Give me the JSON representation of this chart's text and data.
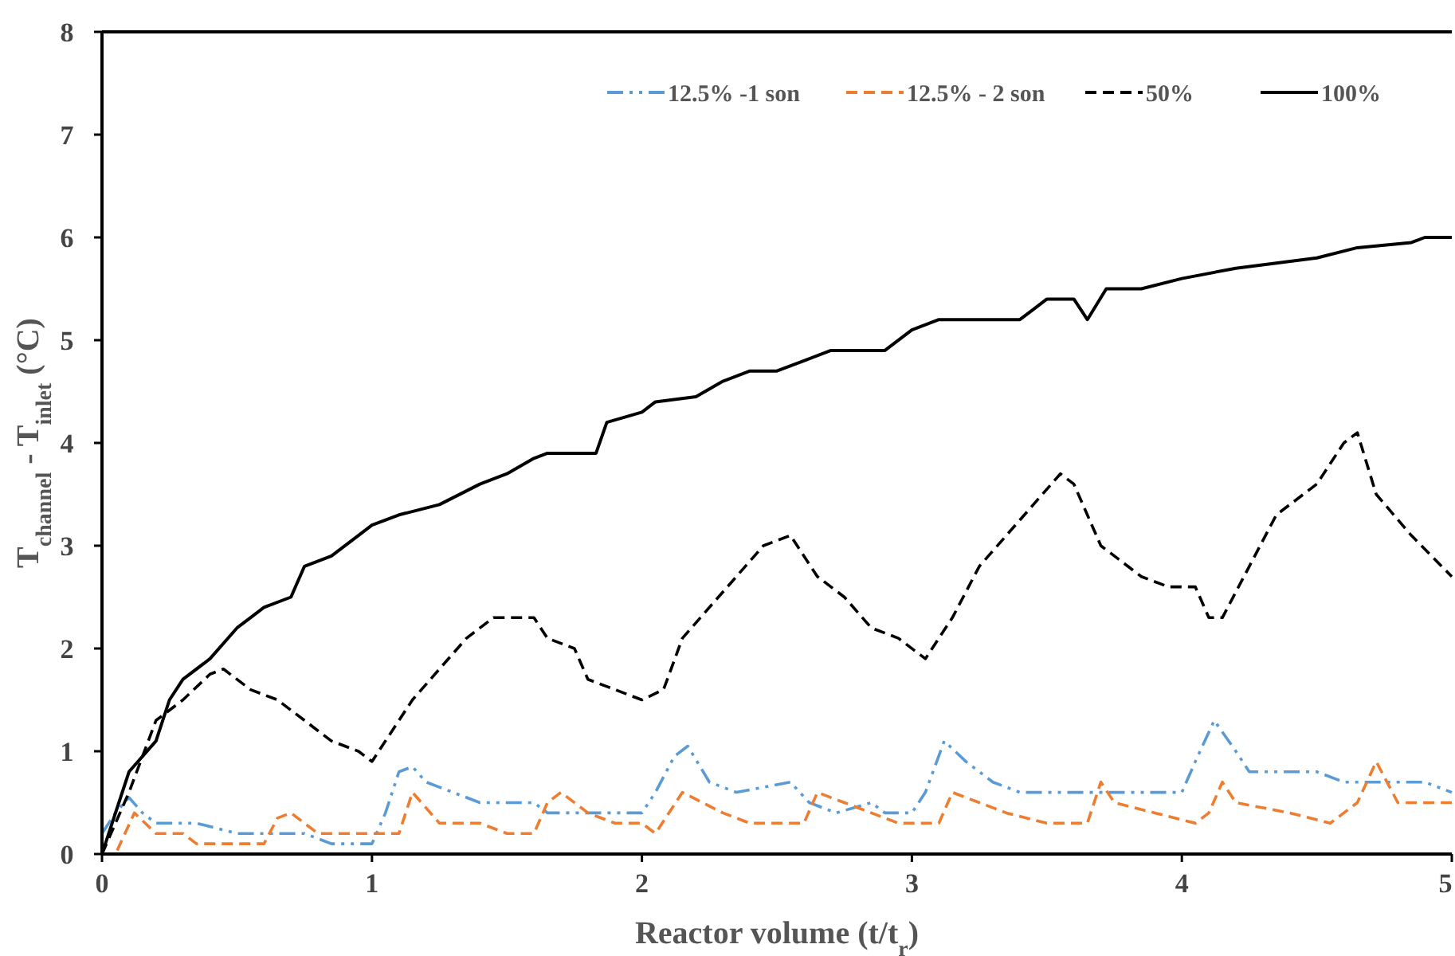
{
  "chart_data": {
    "type": "line",
    "xlabel": "Reactor volume (t/t$_{r}$)",
    "ylabel": "T$_{channel}$ - T$_{inlet}$ (°C)",
    "xlim": [
      0,
      5
    ],
    "ylim": [
      0,
      8
    ],
    "xticks": [
      0,
      1,
      2,
      3,
      4,
      5
    ],
    "yticks": [
      0,
      1,
      2,
      3,
      4,
      5,
      6,
      7,
      8
    ],
    "grid": false,
    "legend": "top right",
    "marker": "none",
    "series": [
      {
        "name": "12.5% -1 son",
        "color": "#5b9bd5",
        "line_style": "dotted",
        "x": [
          0,
          0.05,
          0.1,
          0.15,
          0.2,
          0.35,
          0.5,
          0.6,
          0.75,
          0.85,
          1.0,
          1.05,
          1.1,
          1.15,
          1.2,
          1.3,
          1.4,
          1.6,
          1.65,
          1.9,
          2.0,
          2.05,
          2.12,
          2.17,
          2.25,
          2.35,
          2.55,
          2.62,
          2.72,
          2.85,
          2.9,
          3.0,
          3.05,
          3.12,
          3.2,
          3.3,
          3.4,
          3.6,
          3.72,
          3.85,
          4.0,
          4.05,
          4.12,
          4.2,
          4.25,
          4.5,
          4.6,
          4.9,
          5.0
        ],
        "values": [
          0.2,
          0.4,
          0.55,
          0.4,
          0.3,
          0.3,
          0.2,
          0.2,
          0.2,
          0.1,
          0.1,
          0.4,
          0.8,
          0.85,
          0.7,
          0.6,
          0.5,
          0.5,
          0.4,
          0.4,
          0.4,
          0.6,
          0.95,
          1.05,
          0.7,
          0.6,
          0.7,
          0.5,
          0.4,
          0.5,
          0.4,
          0.4,
          0.6,
          1.1,
          0.9,
          0.7,
          0.6,
          0.6,
          0.6,
          0.6,
          0.6,
          0.9,
          1.3,
          1.0,
          0.8,
          0.8,
          0.7,
          0.7,
          0.6
        ]
      },
      {
        "name": "12.5% - 2 son",
        "color": "#ed7d31",
        "line_style": "dashed",
        "x": [
          0,
          0.05,
          0.12,
          0.2,
          0.3,
          0.35,
          0.6,
          0.65,
          0.7,
          0.75,
          0.8,
          1.0,
          1.1,
          1.15,
          1.25,
          1.4,
          1.5,
          1.6,
          1.65,
          1.7,
          1.8,
          1.9,
          2.0,
          2.05,
          2.15,
          2.3,
          2.4,
          2.6,
          2.65,
          2.75,
          2.85,
          2.95,
          3.1,
          3.15,
          3.25,
          3.35,
          3.5,
          3.65,
          3.7,
          3.75,
          3.9,
          4.05,
          4.1,
          4.15,
          4.2,
          4.4,
          4.55,
          4.65,
          4.72,
          4.8,
          5.0
        ],
        "values": [
          0,
          0,
          0.4,
          0.2,
          0.2,
          0.1,
          0.1,
          0.35,
          0.4,
          0.3,
          0.2,
          0.2,
          0.2,
          0.6,
          0.3,
          0.3,
          0.2,
          0.2,
          0.5,
          0.6,
          0.4,
          0.3,
          0.3,
          0.2,
          0.6,
          0.4,
          0.3,
          0.3,
          0.6,
          0.5,
          0.4,
          0.3,
          0.3,
          0.6,
          0.5,
          0.4,
          0.3,
          0.3,
          0.7,
          0.5,
          0.4,
          0.3,
          0.4,
          0.7,
          0.5,
          0.4,
          0.3,
          0.5,
          0.9,
          0.5,
          0.5
        ]
      },
      {
        "name": "50%",
        "color": "#000000",
        "line_style": "dashed",
        "x": [
          0,
          0.1,
          0.2,
          0.3,
          0.4,
          0.45,
          0.55,
          0.65,
          0.75,
          0.85,
          0.95,
          1.0,
          1.05,
          1.15,
          1.25,
          1.35,
          1.45,
          1.6,
          1.65,
          1.75,
          1.8,
          1.9,
          2.0,
          2.08,
          2.15,
          2.25,
          2.35,
          2.45,
          2.55,
          2.65,
          2.75,
          2.85,
          2.95,
          3.05,
          3.15,
          3.25,
          3.35,
          3.45,
          3.55,
          3.6,
          3.7,
          3.85,
          3.95,
          4.05,
          4.1,
          4.15,
          4.25,
          4.35,
          4.5,
          4.6,
          4.65,
          4.72,
          4.85,
          5.0
        ],
        "values": [
          0,
          0.6,
          1.3,
          1.5,
          1.75,
          1.8,
          1.6,
          1.5,
          1.3,
          1.1,
          1.0,
          0.9,
          1.1,
          1.5,
          1.8,
          2.1,
          2.3,
          2.3,
          2.1,
          2.0,
          1.7,
          1.6,
          1.5,
          1.6,
          2.1,
          2.4,
          2.7,
          3.0,
          3.1,
          2.7,
          2.5,
          2.2,
          2.1,
          1.9,
          2.3,
          2.8,
          3.1,
          3.4,
          3.7,
          3.6,
          3.0,
          2.7,
          2.6,
          2.6,
          2.3,
          2.3,
          2.8,
          3.3,
          3.6,
          4.0,
          4.1,
          3.5,
          3.1,
          2.7
        ]
      },
      {
        "name": "100%",
        "color": "#000000",
        "line_style": "solid",
        "x": [
          0,
          0.1,
          0.2,
          0.25,
          0.3,
          0.4,
          0.5,
          0.55,
          0.6,
          0.7,
          0.75,
          0.85,
          0.95,
          1.0,
          1.1,
          1.25,
          1.4,
          1.5,
          1.6,
          1.65,
          1.83,
          1.87,
          2.0,
          2.05,
          2.2,
          2.3,
          2.4,
          2.5,
          2.6,
          2.7,
          2.9,
          3.0,
          3.1,
          3.4,
          3.45,
          3.5,
          3.6,
          3.65,
          3.72,
          3.85,
          4.0,
          4.2,
          4.5,
          4.65,
          4.85,
          4.9,
          5.0
        ],
        "values": [
          0,
          0.8,
          1.1,
          1.5,
          1.7,
          1.9,
          2.2,
          2.3,
          2.4,
          2.5,
          2.8,
          2.9,
          3.1,
          3.2,
          3.3,
          3.4,
          3.6,
          3.7,
          3.85,
          3.9,
          3.9,
          4.2,
          4.3,
          4.4,
          4.45,
          4.6,
          4.7,
          4.7,
          4.8,
          4.9,
          4.9,
          5.1,
          5.2,
          5.2,
          5.3,
          5.4,
          5.4,
          5.2,
          5.5,
          5.5,
          5.6,
          5.7,
          5.8,
          5.9,
          5.95,
          6.0,
          6.0
        ]
      }
    ]
  }
}
